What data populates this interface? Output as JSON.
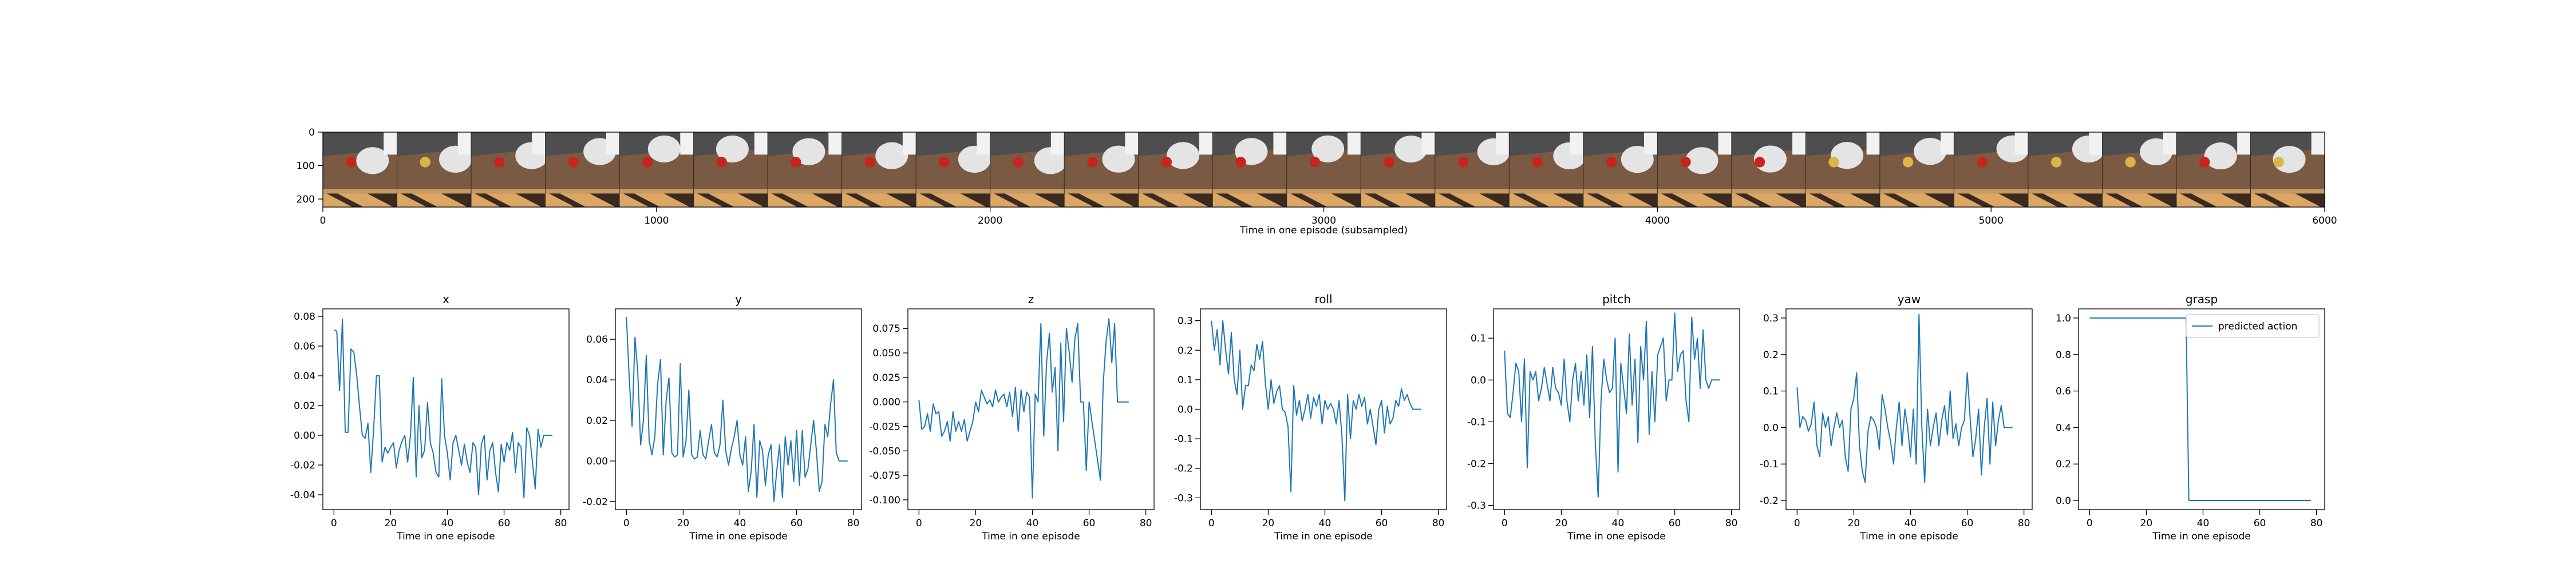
{
  "colors": {
    "series": "#1f77b4",
    "axis": "#000000",
    "wall": "#4e4d4f",
    "table": "#7a5a43",
    "table_edge": "#c39a64",
    "legs": "#3b2a1f",
    "floor": "#dca765",
    "robot": "#e4e4e4",
    "object": "#c8231d",
    "legend_border": "#cccccc"
  },
  "chart_data": [
    {
      "type": "image",
      "xlabel": "Time in one episode (subsampled)",
      "xlim": [
        0,
        6000
      ],
      "ylim": [
        0,
        224
      ],
      "xticks": [
        "0",
        "1000",
        "2000",
        "3000",
        "4000",
        "5000",
        "6000"
      ],
      "yticks": [
        "0",
        "100",
        "200"
      ],
      "frames": 27,
      "frame_width": 224,
      "frame_object_hue": [
        "red",
        "yellow",
        "red",
        "red",
        "red",
        "red",
        "red",
        "red",
        "red",
        "red",
        "red",
        "red",
        "red",
        "red",
        "red",
        "red",
        "red",
        "red",
        "red",
        "red",
        "yellow",
        "yellow",
        "red",
        "yellow",
        "yellow",
        "red",
        "yellow"
      ]
    },
    {
      "type": "line",
      "title": "x",
      "xlabel": "Time in one episode",
      "xlim": [
        -3.9,
        82.9
      ],
      "ylim": [
        -0.05,
        0.085
      ],
      "xticks": [
        "0",
        "20",
        "40",
        "60",
        "80"
      ],
      "yticks": [
        "-0.04",
        "-0.02",
        "0.00",
        "0.02",
        "0.04",
        "0.06",
        "0.08"
      ],
      "series": [
        {
          "values": [
            0.071,
            0.07,
            0.03,
            0.078,
            0.002,
            0.002,
            0.058,
            0.056,
            0.041,
            0.02,
            0.0,
            -0.002,
            0.008,
            -0.025,
            0.004,
            0.04,
            0.04,
            -0.018,
            -0.008,
            -0.012,
            -0.008,
            -0.005,
            -0.022,
            -0.01,
            -0.004,
            0.0,
            -0.018,
            0.0,
            0.039,
            -0.028,
            0.02,
            -0.015,
            -0.01,
            0.022,
            -0.005,
            -0.012,
            -0.025,
            -0.028,
            0.038,
            0.0,
            -0.012,
            -0.03,
            -0.005,
            0.0,
            -0.01,
            -0.02,
            -0.006,
            -0.018,
            -0.025,
            -0.005,
            -0.008,
            -0.04,
            -0.006,
            0.0,
            -0.03,
            -0.01,
            -0.005,
            -0.025,
            -0.038,
            -0.006,
            -0.018,
            -0.005,
            -0.01,
            0.002,
            -0.025,
            -0.005,
            -0.008,
            -0.042,
            0.005,
            0.0,
            -0.018,
            -0.036,
            0.004,
            -0.008,
            0.0,
            0.0,
            0.0,
            0.0
          ]
        }
      ]
    },
    {
      "type": "line",
      "title": "y",
      "xlabel": "Time in one episode",
      "xlim": [
        -3.9,
        82.9
      ],
      "ylim": [
        -0.024,
        0.075
      ],
      "xticks": [
        "0",
        "20",
        "40",
        "60",
        "80"
      ],
      "yticks": [
        "-0.02",
        "0.00",
        "0.02",
        "0.04",
        "0.06"
      ],
      "series": [
        {
          "values": [
            0.071,
            0.04,
            0.017,
            0.061,
            0.044,
            0.008,
            0.02,
            0.052,
            0.01,
            0.003,
            0.012,
            0.038,
            0.05,
            0.003,
            0.03,
            0.041,
            0.004,
            0.002,
            0.003,
            0.048,
            0.002,
            0.01,
            0.035,
            0.003,
            0.001,
            0.002,
            0.015,
            0.003,
            0.001,
            0.01,
            0.018,
            0.004,
            0.002,
            0.008,
            0.03,
            0.005,
            -0.002,
            0.006,
            0.012,
            0.02,
            0.003,
            -0.002,
            0.012,
            -0.015,
            -0.005,
            0.018,
            -0.018,
            0.01,
            0.005,
            -0.012,
            0.003,
            0.008,
            -0.02,
            -0.005,
            0.008,
            -0.018,
            0.012,
            -0.002,
            0.01,
            -0.01,
            0.015,
            -0.012,
            0.015,
            -0.008,
            -0.004,
            0.008,
            0.02,
            0.005,
            -0.015,
            -0.01,
            0.018,
            0.012,
            0.028,
            0.04,
            0.004,
            0.0,
            0.0,
            0.0,
            0.0
          ]
        }
      ]
    },
    {
      "type": "line",
      "title": "z",
      "xlabel": "Time in one episode",
      "xlim": [
        -3.9,
        82.9
      ],
      "ylim": [
        -0.11,
        0.095
      ],
      "xticks": [
        "0",
        "20",
        "40",
        "60",
        "80"
      ],
      "yticks": [
        "-0.100",
        "-0.075",
        "-0.050",
        "-0.025",
        "0.000",
        "0.025",
        "0.050",
        "0.075"
      ],
      "series": [
        {
          "values": [
            0.002,
            -0.028,
            -0.025,
            -0.012,
            -0.03,
            -0.002,
            -0.012,
            -0.01,
            -0.035,
            -0.03,
            -0.02,
            -0.04,
            -0.01,
            -0.03,
            -0.02,
            -0.03,
            -0.018,
            -0.04,
            -0.03,
            -0.02,
            0.0,
            -0.01,
            0.012,
            0.005,
            -0.002,
            0.002,
            -0.005,
            0.012,
            0.0,
            0.005,
            0.008,
            -0.005,
            0.01,
            -0.015,
            0.015,
            -0.03,
            0.012,
            -0.01,
            0.01,
            0.005,
            -0.098,
            0.008,
            0.0,
            0.08,
            -0.035,
            0.04,
            0.07,
            0.01,
            0.035,
            -0.05,
            0.06,
            -0.02,
            0.075,
            0.05,
            0.02,
            0.065,
            0.08,
            0.0,
            0.0,
            -0.07,
            0.0,
            -0.02,
            -0.04,
            -0.06,
            -0.08,
            0.02,
            0.062,
            0.085,
            0.04,
            0.08,
            0.0,
            0.0,
            0.0,
            0.0,
            0.0
          ]
        }
      ]
    },
    {
      "type": "line",
      "title": "roll",
      "xlabel": "Time in one episode",
      "xlim": [
        -3.9,
        82.9
      ],
      "ylim": [
        -0.34,
        0.34
      ],
      "xticks": [
        "0",
        "20",
        "40",
        "60",
        "80"
      ],
      "yticks": [
        "-0.3",
        "-0.2",
        "-0.1",
        "0.0",
        "0.1",
        "0.2",
        "0.3"
      ],
      "series": [
        {
          "values": [
            0.3,
            0.2,
            0.27,
            0.15,
            0.3,
            0.2,
            0.12,
            0.26,
            0.1,
            0.05,
            0.2,
            0.0,
            0.08,
            0.08,
            0.15,
            0.13,
            0.22,
            0.17,
            0.23,
            0.09,
            0.0,
            0.1,
            0.02,
            0.06,
            0.08,
            0.0,
            -0.01,
            -0.06,
            -0.28,
            0.08,
            -0.02,
            0.03,
            -0.04,
            0.0,
            0.05,
            -0.03,
            0.04,
            0.01,
            0.05,
            -0.05,
            0.03,
            0.0,
            0.02,
            0.0,
            -0.05,
            0.03,
            -0.09,
            -0.31,
            0.05,
            -0.1,
            0.03,
            0.0,
            0.05,
            0.01,
            0.04,
            -0.05,
            0.0,
            -0.06,
            -0.12,
            0.0,
            0.03,
            -0.08,
            0.01,
            -0.05,
            -0.03,
            0.03,
            0.01,
            0.07,
            0.03,
            0.05,
            0.02,
            0.0,
            0.0,
            0.0,
            0.0
          ]
        }
      ]
    },
    {
      "type": "line",
      "title": "pitch",
      "xlabel": "Time in one episode",
      "xlim": [
        -3.9,
        82.9
      ],
      "ylim": [
        -0.31,
        0.17
      ],
      "xticks": [
        "0",
        "20",
        "40",
        "60",
        "80"
      ],
      "yticks": [
        "-0.3",
        "-0.2",
        "-0.1",
        "0.0",
        "0.1"
      ],
      "series": [
        {
          "values": [
            0.07,
            -0.08,
            -0.09,
            -0.03,
            0.04,
            0.02,
            -0.1,
            0.05,
            -0.21,
            0.02,
            0.0,
            0.02,
            -0.05,
            -0.02,
            0.03,
            -0.01,
            -0.05,
            0.03,
            -0.02,
            -0.03,
            -0.06,
            0.05,
            -0.05,
            -0.1,
            0.0,
            0.04,
            -0.05,
            0.02,
            -0.06,
            0.06,
            -0.09,
            0.08,
            -0.15,
            -0.28,
            -0.05,
            0.05,
            0.0,
            -0.03,
            -0.02,
            0.1,
            -0.22,
            0.04,
            -0.02,
            -0.08,
            0.11,
            -0.06,
            0.05,
            -0.15,
            0.08,
            0.0,
            0.14,
            -0.13,
            0.02,
            -0.1,
            0.06,
            0.08,
            0.1,
            -0.05,
            0.0,
            0.0,
            0.16,
            0.02,
            0.06,
            0.07,
            -0.05,
            -0.1,
            0.15,
            0.05,
            0.1,
            -0.02,
            0.12,
            0.0,
            -0.02,
            0.0,
            0.0,
            0.0,
            0.0
          ]
        }
      ]
    },
    {
      "type": "line",
      "title": "yaw",
      "xlabel": "Time in one episode",
      "xlim": [
        -3.9,
        82.9
      ],
      "ylim": [
        -0.225,
        0.325
      ],
      "xticks": [
        "0",
        "20",
        "40",
        "60",
        "80"
      ],
      "yticks": [
        "-0.2",
        "-0.1",
        "0.0",
        "0.1",
        "0.2",
        "0.3"
      ],
      "series": [
        {
          "values": [
            0.11,
            0.0,
            0.03,
            0.02,
            -0.01,
            0.01,
            0.07,
            -0.05,
            -0.08,
            0.04,
            0.0,
            0.03,
            -0.05,
            0.0,
            0.04,
            0.0,
            0.02,
            -0.08,
            -0.12,
            0.05,
            0.08,
            0.15,
            -0.05,
            -0.12,
            -0.15,
            -0.01,
            0.03,
            0.02,
            0.0,
            -0.06,
            0.09,
            0.05,
            0.0,
            -0.04,
            -0.1,
            0.0,
            0.07,
            -0.05,
            0.05,
            0.0,
            -0.08,
            0.05,
            -0.1,
            0.31,
            0.0,
            -0.15,
            0.05,
            -0.05,
            0.0,
            0.04,
            -0.05,
            0.02,
            0.06,
            -0.02,
            0.1,
            -0.03,
            0.01,
            -0.05,
            0.0,
            0.02,
            0.15,
            0.03,
            -0.08,
            -0.03,
            0.05,
            -0.13,
            0.0,
            0.08,
            -0.1,
            0.07,
            -0.05,
            0.02,
            0.06,
            0.0,
            0.0,
            0.0,
            0.0
          ]
        }
      ]
    },
    {
      "type": "line",
      "title": "grasp",
      "xlabel": "Time in one episode",
      "xlim": [
        -3.9,
        82.9
      ],
      "ylim": [
        -0.05,
        1.05
      ],
      "xticks": [
        "0",
        "20",
        "40",
        "60",
        "80"
      ],
      "yticks": [
        "0.0",
        "0.2",
        "0.4",
        "0.6",
        "0.8",
        "1.0"
      ],
      "legend": {
        "location": "upper right",
        "entries": [
          "predicted action"
        ]
      },
      "series": [
        {
          "name": "predicted action",
          "values": [
            1,
            1,
            1,
            1,
            1,
            1,
            1,
            1,
            1,
            1,
            1,
            1,
            1,
            1,
            1,
            1,
            1,
            1,
            1,
            1,
            1,
            1,
            1,
            1,
            1,
            1,
            1,
            1,
            1,
            1,
            1,
            1,
            1,
            1,
            1,
            0,
            0,
            0,
            0,
            0,
            0,
            0,
            0,
            0,
            0,
            0,
            0,
            0,
            0,
            0,
            0,
            0,
            0,
            0,
            0,
            0,
            0,
            0,
            0,
            0,
            0,
            0,
            0,
            0,
            0,
            0,
            0,
            0,
            0,
            0,
            0,
            0,
            0,
            0,
            0,
            0,
            0,
            0,
            0
          ]
        }
      ]
    }
  ]
}
